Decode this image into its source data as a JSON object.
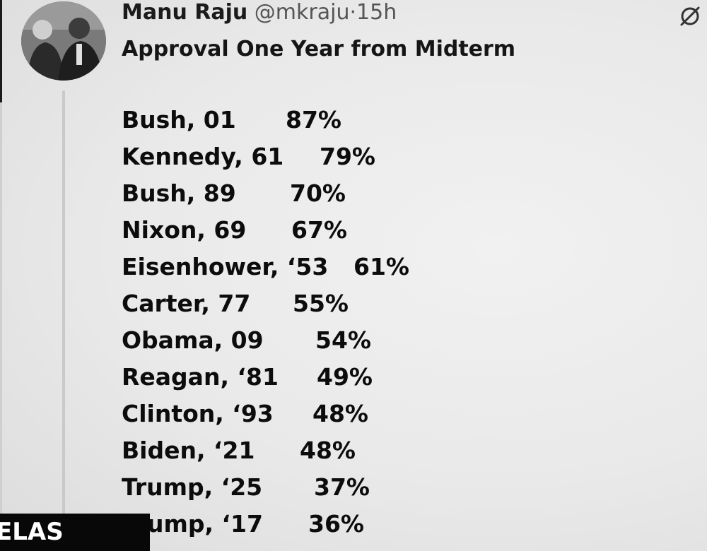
{
  "post": {
    "author_name": "Manu Raju",
    "handle": "@mkraju",
    "separator": "·",
    "time": "15h",
    "title": "Approval One Year from Midterm"
  },
  "rows": [
    {
      "label": "Bush, 01",
      "value": "87%"
    },
    {
      "label": "Kennedy, 61",
      "value": "79%"
    },
    {
      "label": "Bush, 89",
      "value": "70%"
    },
    {
      "label": "Nixon, 69",
      "value": "67%"
    },
    {
      "label": "Eisenhower, ‘53",
      "value": "61%"
    },
    {
      "label": "Carter, 77",
      "value": "55%"
    },
    {
      "label": "Obama, 09",
      "value": "54%"
    },
    {
      "label": "Reagan, ‘81",
      "value": "49%"
    },
    {
      "label": "Clinton, ‘93",
      "value": "48%"
    },
    {
      "label": "Biden, ‘21",
      "value": "48%"
    },
    {
      "label": "Trump, ‘25",
      "value": "37%"
    },
    {
      "label": "ump, ‘17",
      "value": "36%"
    }
  ],
  "ticker": {
    "text": "ELAS"
  },
  "icons": {
    "more": "more-icon",
    "avatar": "avatar-photo"
  }
}
